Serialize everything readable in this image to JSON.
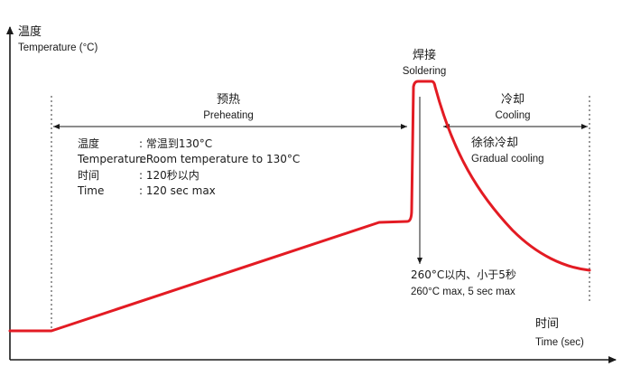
{
  "y_axis": {
    "label_cn": "温度",
    "label_en": "Temperature (°C)"
  },
  "x_axis": {
    "label_cn": "时间",
    "label_en": "Time (sec)"
  },
  "stages": {
    "preheating": {
      "label_cn": "预热",
      "label_en": "Preheating",
      "specs": [
        {
          "key": "温度",
          "value": ": 常温到130°C"
        },
        {
          "key": "Temperature",
          "value": ": Room temperature to 130°C"
        },
        {
          "key": "时间",
          "value": ": 120秒以内"
        },
        {
          "key": "Time",
          "value": ": 120 sec max"
        }
      ]
    },
    "soldering": {
      "label_cn": "焊接",
      "label_en": "Soldering",
      "note_cn": "260°C以内、小于5秒",
      "note_en": "260°C max, 5 sec max"
    },
    "cooling": {
      "label_cn": "冷却",
      "label_en": "Cooling",
      "sub_cn": "徐徐冷却",
      "sub_en": "Gradual cooling"
    }
  },
  "colors": {
    "profile_curve": "#e31b23",
    "axes": "#1a1a1a",
    "guides": "#333333"
  }
}
